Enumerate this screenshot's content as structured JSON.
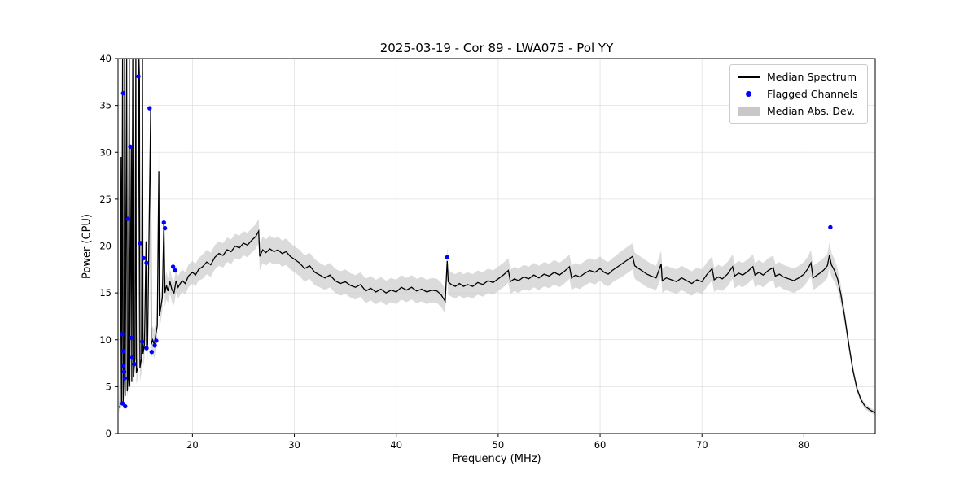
{
  "chart_data": {
    "type": "line",
    "title": "2025-03-19 - Cor 89 - LWA075 - Pol YY",
    "xlabel": "Frequency (MHz)",
    "ylabel": "Power (CPU)",
    "xlim": [
      12.7,
      87.0
    ],
    "ylim": [
      0,
      40
    ],
    "xticks": [
      20,
      30,
      40,
      50,
      60,
      70,
      80
    ],
    "yticks": [
      0,
      5,
      10,
      15,
      20,
      25,
      30,
      35,
      40
    ],
    "grid": true,
    "legend_position": "upper right",
    "legend": [
      {
        "label": "Median Spectrum",
        "type": "line",
        "color": "#000000"
      },
      {
        "label": "Flagged Channels",
        "type": "dot",
        "color": "#0000ff"
      },
      {
        "label": "Median Abs. Dev.",
        "type": "band",
        "color": "#c8c8c8"
      }
    ],
    "series": [
      {
        "name": "Median Spectrum",
        "type": "line",
        "color": "#000000",
        "points": [
          [
            12.8,
            2.9,
            0.5
          ],
          [
            12.9,
            2.7,
            0.5
          ],
          [
            13.0,
            29.5,
            2.0
          ],
          [
            13.05,
            3.2,
            0.6
          ],
          [
            13.15,
            40,
            3.0
          ],
          [
            13.2,
            3.4,
            0.6
          ],
          [
            13.3,
            7.0,
            1.0
          ],
          [
            13.35,
            40,
            3.0
          ],
          [
            13.4,
            4.0,
            0.8
          ],
          [
            13.55,
            40,
            4.0
          ],
          [
            13.6,
            4.5,
            0.8
          ],
          [
            13.7,
            6.0,
            1.0
          ],
          [
            13.8,
            40,
            4.0
          ],
          [
            13.85,
            5.0,
            1.0
          ],
          [
            14.0,
            30.5,
            3.0
          ],
          [
            14.05,
            5.5,
            1.0
          ],
          [
            14.15,
            40,
            5.0
          ],
          [
            14.2,
            6.0,
            1.0
          ],
          [
            14.35,
            8.0,
            1.5
          ],
          [
            14.45,
            40,
            6.0
          ],
          [
            14.5,
            6.5,
            1.2
          ],
          [
            14.65,
            7.0,
            1.2
          ],
          [
            14.75,
            40,
            6.0
          ],
          [
            14.8,
            38.0,
            5.0
          ],
          [
            14.85,
            7.0,
            1.5
          ],
          [
            15.0,
            8.0,
            1.5
          ],
          [
            15.1,
            40,
            5.0
          ],
          [
            15.15,
            8.5,
            1.5
          ],
          [
            15.3,
            9.5,
            1.5
          ],
          [
            15.45,
            20.5,
            2.0
          ],
          [
            15.5,
            9.0,
            1.5
          ],
          [
            15.6,
            9.5,
            1.5
          ],
          [
            15.9,
            34.5,
            3.0
          ],
          [
            15.95,
            9.5,
            1.5
          ],
          [
            16.1,
            10.0,
            1.5
          ],
          [
            16.25,
            9.5,
            1.5
          ],
          [
            16.4,
            10.5,
            1.5
          ],
          [
            16.55,
            11.5,
            1.5
          ],
          [
            16.7,
            28.0,
            3.0
          ],
          [
            16.75,
            12.5,
            1.5
          ],
          [
            16.9,
            13.5,
            1.5
          ],
          [
            17.05,
            14.5,
            1.5
          ],
          [
            17.2,
            22.5,
            2.0
          ],
          [
            17.3,
            15.0,
            1.5
          ],
          [
            17.45,
            15.8,
            1.5
          ],
          [
            17.6,
            15.2,
            1.3
          ],
          [
            17.8,
            16.2,
            1.3
          ],
          [
            18.0,
            15.3,
            1.3
          ],
          [
            18.2,
            15.0,
            1.3
          ],
          [
            18.4,
            16.3,
            1.3
          ],
          [
            18.6,
            15.6,
            1.2
          ],
          [
            18.8,
            16.0,
            1.2
          ],
          [
            19.0,
            16.3,
            1.2
          ],
          [
            19.3,
            16.0,
            1.2
          ],
          [
            19.6,
            16.8,
            1.2
          ],
          [
            20.0,
            17.2,
            1.2
          ],
          [
            20.3,
            16.9,
            1.2
          ],
          [
            20.6,
            17.5,
            1.2
          ],
          [
            21.0,
            17.8,
            1.3
          ],
          [
            21.4,
            18.3,
            1.3
          ],
          [
            21.8,
            18.0,
            1.3
          ],
          [
            22.2,
            18.8,
            1.3
          ],
          [
            22.6,
            19.2,
            1.3
          ],
          [
            23.0,
            19.0,
            1.3
          ],
          [
            23.4,
            19.6,
            1.3
          ],
          [
            23.8,
            19.4,
            1.3
          ],
          [
            24.2,
            20.0,
            1.3
          ],
          [
            24.6,
            19.8,
            1.3
          ],
          [
            25.0,
            20.3,
            1.3
          ],
          [
            25.4,
            20.1,
            1.3
          ],
          [
            25.8,
            20.6,
            1.3
          ],
          [
            26.2,
            21.0,
            1.3
          ],
          [
            26.5,
            21.6,
            1.3
          ],
          [
            26.6,
            18.9,
            1.5
          ],
          [
            26.9,
            19.6,
            1.4
          ],
          [
            27.2,
            19.3,
            1.4
          ],
          [
            27.6,
            19.7,
            1.4
          ],
          [
            28.0,
            19.4,
            1.4
          ],
          [
            28.4,
            19.6,
            1.4
          ],
          [
            28.8,
            19.2,
            1.4
          ],
          [
            29.2,
            19.4,
            1.4
          ],
          [
            29.6,
            18.9,
            1.4
          ],
          [
            30.0,
            18.6,
            1.4
          ],
          [
            30.5,
            18.2,
            1.4
          ],
          [
            31.0,
            17.6,
            1.4
          ],
          [
            31.5,
            17.9,
            1.4
          ],
          [
            32.0,
            17.2,
            1.4
          ],
          [
            32.5,
            16.9,
            1.3
          ],
          [
            33.0,
            16.6,
            1.3
          ],
          [
            33.5,
            16.9,
            1.3
          ],
          [
            34.0,
            16.3,
            1.3
          ],
          [
            34.5,
            16.0,
            1.3
          ],
          [
            35.0,
            16.2,
            1.3
          ],
          [
            35.5,
            15.8,
            1.3
          ],
          [
            36.0,
            15.6,
            1.3
          ],
          [
            36.5,
            15.9,
            1.3
          ],
          [
            37.0,
            15.2,
            1.3
          ],
          [
            37.5,
            15.5,
            1.3
          ],
          [
            38.0,
            15.1,
            1.3
          ],
          [
            38.5,
            15.4,
            1.3
          ],
          [
            39.0,
            15.0,
            1.3
          ],
          [
            39.5,
            15.3,
            1.3
          ],
          [
            40.0,
            15.1,
            1.3
          ],
          [
            40.5,
            15.6,
            1.3
          ],
          [
            41.0,
            15.3,
            1.3
          ],
          [
            41.5,
            15.6,
            1.3
          ],
          [
            42.0,
            15.2,
            1.3
          ],
          [
            42.5,
            15.4,
            1.3
          ],
          [
            43.0,
            15.1,
            1.3
          ],
          [
            43.5,
            15.3,
            1.3
          ],
          [
            44.0,
            15.2,
            1.3
          ],
          [
            44.4,
            14.8,
            1.3
          ],
          [
            44.8,
            14.1,
            1.3
          ],
          [
            45.0,
            18.4,
            1.5
          ],
          [
            45.1,
            16.2,
            1.4
          ],
          [
            45.4,
            15.9,
            1.3
          ],
          [
            45.8,
            15.7,
            1.3
          ],
          [
            46.2,
            16.0,
            1.3
          ],
          [
            46.6,
            15.7,
            1.3
          ],
          [
            47.0,
            15.9,
            1.3
          ],
          [
            47.5,
            15.7,
            1.3
          ],
          [
            48.0,
            16.1,
            1.3
          ],
          [
            48.5,
            15.9,
            1.3
          ],
          [
            49.0,
            16.3,
            1.3
          ],
          [
            49.5,
            16.1,
            1.3
          ],
          [
            50.0,
            16.5,
            1.3
          ],
          [
            50.5,
            16.9,
            1.3
          ],
          [
            51.0,
            17.4,
            1.3
          ],
          [
            51.2,
            16.2,
            1.3
          ],
          [
            51.6,
            16.5,
            1.3
          ],
          [
            52.0,
            16.3,
            1.3
          ],
          [
            52.5,
            16.7,
            1.3
          ],
          [
            53.0,
            16.5,
            1.3
          ],
          [
            53.5,
            16.9,
            1.3
          ],
          [
            54.0,
            16.6,
            1.3
          ],
          [
            54.5,
            17.0,
            1.3
          ],
          [
            55.0,
            16.8,
            1.3
          ],
          [
            55.5,
            17.2,
            1.3
          ],
          [
            56.0,
            16.9,
            1.3
          ],
          [
            56.5,
            17.3,
            1.3
          ],
          [
            57.0,
            17.8,
            1.3
          ],
          [
            57.2,
            16.6,
            1.3
          ],
          [
            57.6,
            16.9,
            1.3
          ],
          [
            58.0,
            16.7,
            1.3
          ],
          [
            58.5,
            17.1,
            1.3
          ],
          [
            59.0,
            17.4,
            1.3
          ],
          [
            59.5,
            17.2,
            1.3
          ],
          [
            60.0,
            17.6,
            1.3
          ],
          [
            60.4,
            17.2,
            1.3
          ],
          [
            60.8,
            17.0,
            1.3
          ],
          [
            61.2,
            17.4,
            1.3
          ],
          [
            61.6,
            17.7,
            1.3
          ],
          [
            62.0,
            18.0,
            1.4
          ],
          [
            62.4,
            18.3,
            1.4
          ],
          [
            62.8,
            18.6,
            1.4
          ],
          [
            63.2,
            18.9,
            1.4
          ],
          [
            63.4,
            17.9,
            1.4
          ],
          [
            63.8,
            17.6,
            1.4
          ],
          [
            64.2,
            17.3,
            1.4
          ],
          [
            64.6,
            17.0,
            1.4
          ],
          [
            65.0,
            16.8,
            1.3
          ],
          [
            65.5,
            16.6,
            1.3
          ],
          [
            66.0,
            18.1,
            1.4
          ],
          [
            66.1,
            16.3,
            1.3
          ],
          [
            66.5,
            16.6,
            1.3
          ],
          [
            67.0,
            16.4,
            1.3
          ],
          [
            67.5,
            16.2,
            1.3
          ],
          [
            68.0,
            16.6,
            1.3
          ],
          [
            68.5,
            16.3,
            1.3
          ],
          [
            69.0,
            16.0,
            1.3
          ],
          [
            69.5,
            16.4,
            1.3
          ],
          [
            70.0,
            16.2,
            1.3
          ],
          [
            70.5,
            17.0,
            1.3
          ],
          [
            71.0,
            17.6,
            1.3
          ],
          [
            71.2,
            16.4,
            1.3
          ],
          [
            71.6,
            16.7,
            1.3
          ],
          [
            72.0,
            16.5,
            1.3
          ],
          [
            72.5,
            17.0,
            1.3
          ],
          [
            73.0,
            17.8,
            1.3
          ],
          [
            73.2,
            16.8,
            1.3
          ],
          [
            73.6,
            17.1,
            1.3
          ],
          [
            74.0,
            16.9,
            1.3
          ],
          [
            74.5,
            17.3,
            1.3
          ],
          [
            75.0,
            17.8,
            1.3
          ],
          [
            75.2,
            16.9,
            1.3
          ],
          [
            75.6,
            17.2,
            1.3
          ],
          [
            76.0,
            16.9,
            1.3
          ],
          [
            76.5,
            17.4,
            1.3
          ],
          [
            77.0,
            17.7,
            1.3
          ],
          [
            77.2,
            16.8,
            1.3
          ],
          [
            77.6,
            17.0,
            1.3
          ],
          [
            78.0,
            16.7,
            1.3
          ],
          [
            78.5,
            16.5,
            1.3
          ],
          [
            79.0,
            16.3,
            1.3
          ],
          [
            79.5,
            16.6,
            1.3
          ],
          [
            80.0,
            17.0,
            1.3
          ],
          [
            80.4,
            17.6,
            1.3
          ],
          [
            80.7,
            18.2,
            1.4
          ],
          [
            80.9,
            16.6,
            1.3
          ],
          [
            81.3,
            16.9,
            1.3
          ],
          [
            81.7,
            17.2,
            1.3
          ],
          [
            82.0,
            17.5,
            1.3
          ],
          [
            82.3,
            17.9,
            1.3
          ],
          [
            82.5,
            19.0,
            1.4
          ],
          [
            82.7,
            18.0,
            1.3
          ],
          [
            83.0,
            17.4,
            1.2
          ],
          [
            83.3,
            16.5,
            1.1
          ],
          [
            83.6,
            15.0,
            1.0
          ],
          [
            84.0,
            12.5,
            0.8
          ],
          [
            84.4,
            9.5,
            0.6
          ],
          [
            84.8,
            6.8,
            0.5
          ],
          [
            85.2,
            4.8,
            0.4
          ],
          [
            85.6,
            3.6,
            0.3
          ],
          [
            86.0,
            2.9,
            0.3
          ],
          [
            86.5,
            2.5,
            0.25
          ],
          [
            87.0,
            2.2,
            0.25
          ]
        ]
      },
      {
        "name": "Flagged Channels",
        "type": "scatter",
        "color": "#0000ff",
        "points": [
          [
            13.1,
            10.6
          ],
          [
            13.15,
            3.2
          ],
          [
            13.2,
            36.3
          ],
          [
            13.2,
            8.8
          ],
          [
            13.25,
            7.2
          ],
          [
            13.3,
            6.6
          ],
          [
            13.35,
            5.9
          ],
          [
            13.4,
            2.9
          ],
          [
            13.7,
            22.9
          ],
          [
            13.9,
            30.6
          ],
          [
            14.0,
            10.2
          ],
          [
            14.1,
            8.1
          ],
          [
            14.3,
            7.4
          ],
          [
            14.7,
            38.1
          ],
          [
            14.9,
            20.3
          ],
          [
            15.1,
            9.8
          ],
          [
            15.2,
            18.7
          ],
          [
            15.5,
            18.2
          ],
          [
            15.5,
            9.1
          ],
          [
            15.8,
            34.7
          ],
          [
            16.0,
            8.7
          ],
          [
            16.3,
            9.4
          ],
          [
            16.45,
            9.9
          ],
          [
            17.2,
            22.5
          ],
          [
            17.3,
            21.9
          ],
          [
            18.1,
            17.8
          ],
          [
            18.3,
            17.4
          ],
          [
            45.0,
            18.8
          ],
          [
            82.6,
            22.0
          ]
        ]
      },
      {
        "name": "Median Abs. Dev.",
        "type": "band",
        "color": "#c8c8c8"
      }
    ]
  }
}
